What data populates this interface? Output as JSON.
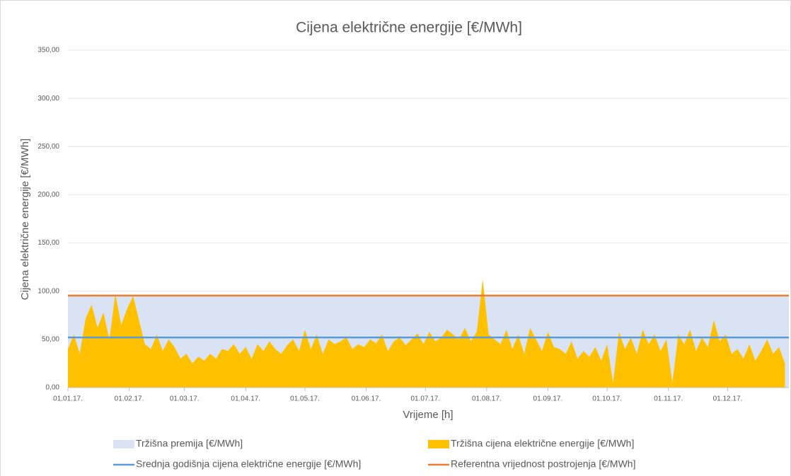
{
  "chart_data": {
    "type": "area",
    "title": "Cijena električne energije [€/MWh]",
    "x_label": "Vrijeme [h]",
    "y_label": "Cijena električne energije [€/MWh]",
    "xlim": [
      0,
      365
    ],
    "xticks": [
      {
        "value": 0,
        "label": "01.01.17."
      },
      {
        "value": 31,
        "label": "01.02.17."
      },
      {
        "value": 59,
        "label": "01.03.17."
      },
      {
        "value": 90,
        "label": "01.04.17."
      },
      {
        "value": 120,
        "label": "01.05.17."
      },
      {
        "value": 151,
        "label": "01.06.17."
      },
      {
        "value": 181,
        "label": "01.07.17."
      },
      {
        "value": 212,
        "label": "01.08.17."
      },
      {
        "value": 243,
        "label": "01.09.17."
      },
      {
        "value": 273,
        "label": "01.10.17."
      },
      {
        "value": 304,
        "label": "01.11.17."
      },
      {
        "value": 334,
        "label": "01.12.17."
      }
    ],
    "ylim": [
      0,
      350
    ],
    "yticks": [
      {
        "value": 0,
        "label": "0,00"
      },
      {
        "value": 50,
        "label": "50,00"
      },
      {
        "value": 100,
        "label": "100,00"
      },
      {
        "value": 150,
        "label": "150,00"
      },
      {
        "value": 200,
        "label": "200,00"
      },
      {
        "value": 250,
        "label": "250,00"
      },
      {
        "value": 300,
        "label": "300,00"
      },
      {
        "value": 350,
        "label": "350,00"
      }
    ],
    "grid": true,
    "legend": "bottom",
    "series": [
      {
        "name": "Tržišna premija [€/MWh]",
        "kind": "area",
        "color": "#dae3f3",
        "x": [
          0,
          365
        ],
        "values": [
          95.5,
          95.5
        ]
      },
      {
        "name": "Tržišna cijena električne energije [€/MWh]",
        "kind": "area",
        "color": "#ffc000",
        "x": [
          0,
          3,
          6,
          9,
          12,
          15,
          18,
          21,
          24,
          27,
          30,
          33,
          36,
          39,
          42,
          45,
          48,
          51,
          54,
          57,
          60,
          63,
          66,
          69,
          72,
          75,
          78,
          81,
          84,
          87,
          90,
          93,
          96,
          99,
          102,
          105,
          108,
          111,
          114,
          117,
          120,
          123,
          126,
          129,
          132,
          135,
          138,
          141,
          144,
          147,
          150,
          153,
          156,
          159,
          162,
          165,
          168,
          171,
          174,
          177,
          180,
          183,
          186,
          189,
          192,
          195,
          198,
          201,
          204,
          207,
          210,
          213,
          216,
          219,
          222,
          225,
          228,
          231,
          234,
          237,
          240,
          243,
          246,
          249,
          252,
          255,
          258,
          261,
          264,
          267,
          270,
          273,
          276,
          279,
          282,
          285,
          288,
          291,
          294,
          297,
          300,
          303,
          306,
          309,
          312,
          315,
          318,
          321,
          324,
          327,
          330,
          333,
          336,
          339,
          342,
          345,
          348,
          351,
          354,
          357,
          360,
          363
        ],
        "values": [
          40,
          55,
          35,
          72,
          86,
          62,
          78,
          50,
          97,
          65,
          82,
          95,
          70,
          45,
          40,
          55,
          38,
          50,
          42,
          30,
          35,
          25,
          32,
          28,
          35,
          30,
          40,
          38,
          45,
          35,
          42,
          30,
          45,
          38,
          48,
          40,
          35,
          44,
          50,
          38,
          60,
          40,
          55,
          35,
          50,
          45,
          48,
          52,
          40,
          45,
          42,
          50,
          46,
          55,
          38,
          48,
          52,
          44,
          50,
          56,
          45,
          58,
          48,
          52,
          60,
          55,
          50,
          62,
          48,
          58,
          112,
          55,
          50,
          45,
          60,
          40,
          55,
          35,
          62,
          50,
          38,
          58,
          42,
          40,
          35,
          48,
          30,
          38,
          32,
          42,
          28,
          45,
          5,
          58,
          40,
          52,
          35,
          60,
          45,
          55,
          38,
          50,
          5,
          55,
          45,
          60,
          38,
          52,
          42,
          70,
          48,
          55,
          35,
          40,
          30,
          45,
          28,
          38,
          50,
          35,
          42,
          25
        ]
      },
      {
        "name": "Srednja godišnja cijena električne energije  [€/MWh]",
        "kind": "line",
        "color": "#5b9bd5",
        "x": [
          0,
          365
        ],
        "values": [
          52,
          52
        ]
      },
      {
        "name": "Referentna vrijednost postrojenja [€/MWh]",
        "kind": "line",
        "color": "#ed7d31",
        "x": [
          0,
          365
        ],
        "values": [
          95.5,
          95.5
        ]
      }
    ]
  }
}
